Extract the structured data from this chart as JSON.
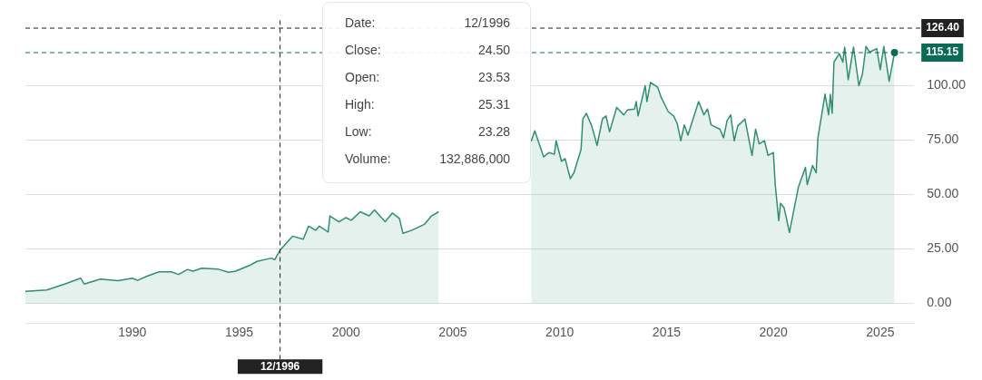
{
  "chart_data": {
    "type": "area",
    "x": [
      "1985-01",
      "1986-01",
      "1986-11",
      "1987-08",
      "1987-10",
      "1988-07",
      "1989-05",
      "1990-01",
      "1990-04",
      "1990-09",
      "1991-04",
      "1991-11",
      "1992-03",
      "1992-08",
      "1992-11",
      "1993-04",
      "1994-01",
      "1994-07",
      "1994-11",
      "1995-07",
      "1995-11",
      "1996-07",
      "1996-09",
      "1996-12",
      "1997-07",
      "1998-01",
      "1998-04",
      "1998-08",
      "1998-10",
      "1999-03",
      "1999-04",
      "1999-09",
      "2000-01",
      "2000-04",
      "2000-09",
      "2001-02",
      "2001-05",
      "2001-11",
      "2002-03",
      "2002-07",
      "2002-09",
      "2003-02",
      "2003-09",
      "2004-01",
      "2004-05",
      "2004-10",
      "2005-07",
      "2006-03",
      "2006-10",
      "2007-04",
      "2007-09",
      "2008-01",
      "2008-04",
      "2008-09",
      "2008-11",
      "2009-04",
      "2009-07",
      "2009-10",
      "2009-11",
      "2010-02",
      "2010-04",
      "2010-07",
      "2010-09",
      "2011-01",
      "2011-02",
      "2011-04",
      "2011-07",
      "2011-10",
      "2012-01",
      "2012-03",
      "2012-05",
      "2012-09",
      "2013-01",
      "2013-03",
      "2013-07",
      "2013-08",
      "2013-09",
      "2014-01",
      "2014-02",
      "2014-04",
      "2014-08",
      "2014-10",
      "2015-02",
      "2015-05",
      "2015-07",
      "2015-09",
      "2015-11",
      "2016-01",
      "2016-07",
      "2016-10",
      "2016-12",
      "2017-02",
      "2017-07",
      "2017-09",
      "2017-11",
      "2018-01",
      "2018-03",
      "2018-05",
      "2018-09",
      "2019-01",
      "2019-03",
      "2019-05",
      "2019-08",
      "2019-10",
      "2020-01",
      "2020-02",
      "2020-04",
      "2020-05",
      "2020-07",
      "2020-10",
      "2021-03",
      "2021-07",
      "2021-08",
      "2021-11",
      "2022-01",
      "2022-02",
      "2022-06",
      "2022-08",
      "2022-09",
      "2022-10",
      "2022-11",
      "2023-02",
      "2023-04",
      "2023-05",
      "2023-07",
      "2023-10",
      "2024-01",
      "2024-03",
      "2024-05",
      "2024-07",
      "2024-11",
      "2025-01",
      "2025-03",
      "2025-06",
      "2025-09"
    ],
    "series": [
      {
        "color": "#2f8f6f",
        "values": [
          5.6,
          6.2,
          8.9,
          11.6,
          8.9,
          11.2,
          10.4,
          11.6,
          10.6,
          12.4,
          14.5,
          14.5,
          13.3,
          15.6,
          14.8,
          16.2,
          15.8,
          14.3,
          14.8,
          17.5,
          19.3,
          20.8,
          20.1,
          24.5,
          30.9,
          29.5,
          35.5,
          33.6,
          35.5,
          32.8,
          40.2,
          37.5,
          39.4,
          38.2,
          42.1,
          40.2,
          42.9,
          37.5,
          41.5,
          39.0,
          32.2,
          33.6,
          36.3,
          40.2,
          42.1,
          null,
          null,
          null,
          null,
          null,
          null,
          null,
          null,
          74.5,
          79.3,
          67.3,
          69.3,
          68.5,
          74.7,
          65.3,
          66.5,
          57.3,
          60,
          70.7,
          84.7,
          87.3,
          81.5,
          72.6,
          84.7,
          86.1,
          78.8,
          90,
          86.6,
          88.8,
          89.3,
          92.7,
          86.1,
          100,
          92.7,
          101.5,
          99.3,
          94.6,
          88,
          86.1,
          82.6,
          74.7,
          82,
          77.3,
          92.7,
          86.6,
          89.3,
          82,
          80,
          76,
          84,
          86.6,
          74.7,
          81.5,
          84.7,
          68,
          80,
          73.3,
          74.7,
          68,
          69.3,
          54.8,
          38,
          46,
          44,
          32.6,
          53.3,
          62.5,
          54.6,
          63.3,
          60,
          76,
          96.1,
          86.6,
          96,
          87.3,
          110.8,
          114.7,
          110.8,
          117.7,
          102.7,
          117.7,
          100,
          105.4,
          118,
          115.4,
          117,
          107.3,
          118,
          102,
          115.15
        ]
      }
    ],
    "xlim": [
      "1985-01",
      "2026-08"
    ],
    "xticks": [
      "1990",
      "1995",
      "2000",
      "2005",
      "2010",
      "2015",
      "2020",
      "2025"
    ],
    "ylim": [
      -9,
      130
    ],
    "yticks": [
      {
        "value": 0,
        "label": "0.00"
      },
      {
        "value": 25,
        "label": "25.00"
      },
      {
        "value": 50,
        "label": "50.00"
      },
      {
        "value": 75,
        "label": "75.00"
      },
      {
        "value": 100,
        "label": "100.00"
      }
    ],
    "grid": "y",
    "ref_lines": [
      {
        "axis": "x",
        "value": "1996-12",
        "label": "12/1996",
        "color": "#222222",
        "line_style": "dashed"
      },
      {
        "axis": "y",
        "value": 126.4,
        "label": "126.40",
        "color": "#222222",
        "line_style": "dashed"
      },
      {
        "axis": "y",
        "value": 115.15,
        "label": "115.15",
        "color": "#0b6b55",
        "line_style": "dashed"
      }
    ],
    "annotations": [
      "Date:",
      "12/1996",
      "Close:",
      "24.50",
      "Open:",
      "23.53",
      "High:",
      "25.31",
      "Low:",
      "23.28",
      "Volume:",
      "132,886,000"
    ]
  }
}
